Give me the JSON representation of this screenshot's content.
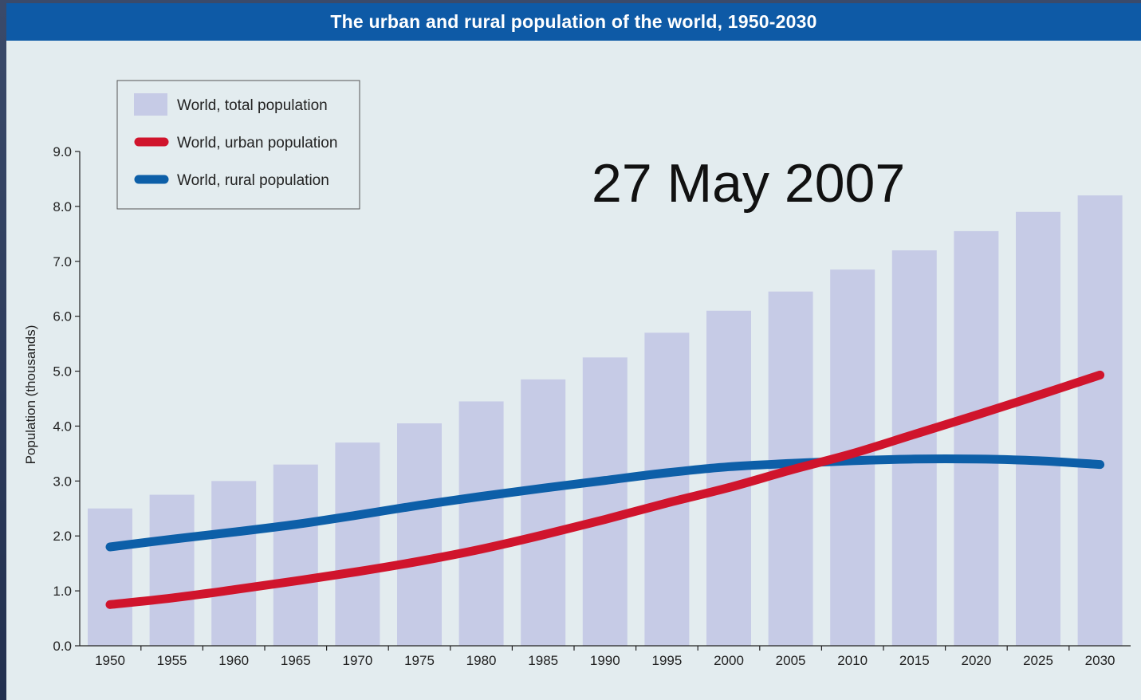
{
  "title": "The urban and rural population of the world, 1950-2030",
  "annotation": "27 May 2007",
  "colors": {
    "title_bar": "#0e5aa6",
    "background": "#e3ecef",
    "total_bar": "#c6cbe6",
    "urban_line": "#d0142c",
    "rural_line": "#0d5fa8"
  },
  "chart_data": {
    "type": "bar",
    "title": "The urban and rural population of the world, 1950-2030",
    "xlabel": "",
    "ylabel": "Population (thousands)",
    "ylim": [
      0,
      9
    ],
    "yticks": [
      "0.0",
      "1.0",
      "2.0",
      "3.0",
      "4.0",
      "5.0",
      "6.0",
      "7.0",
      "8.0",
      "9.0"
    ],
    "grid": false,
    "legend_position": "top-left",
    "categories": [
      "1950",
      "1955",
      "1960",
      "1965",
      "1970",
      "1975",
      "1980",
      "1985",
      "1990",
      "1995",
      "2000",
      "2005",
      "2010",
      "2015",
      "2020",
      "2025",
      "2030"
    ],
    "series": [
      {
        "name": "World, total population",
        "type": "bar",
        "values": [
          2.5,
          2.75,
          3.0,
          3.3,
          3.7,
          4.05,
          4.45,
          4.85,
          5.25,
          5.7,
          6.1,
          6.45,
          6.85,
          7.2,
          7.55,
          7.9,
          8.2
        ]
      },
      {
        "name": "World, urban population",
        "type": "line",
        "values": [
          0.75,
          0.87,
          1.02,
          1.18,
          1.35,
          1.54,
          1.76,
          2.02,
          2.3,
          2.6,
          2.88,
          3.2,
          3.5,
          3.85,
          4.2,
          4.56,
          4.93
        ]
      },
      {
        "name": "World, rural population",
        "type": "line",
        "values": [
          1.8,
          1.94,
          2.07,
          2.21,
          2.38,
          2.56,
          2.72,
          2.87,
          3.01,
          3.15,
          3.26,
          3.32,
          3.37,
          3.4,
          3.4,
          3.37,
          3.3
        ]
      }
    ]
  }
}
